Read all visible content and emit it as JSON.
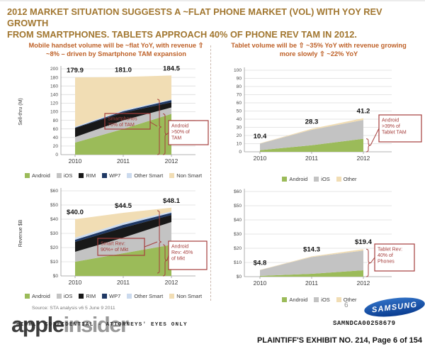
{
  "header": {
    "line1": "2012 MARKET SITUATION SUGGESTS A ~FLAT PHONE MARKET (VOL) WITH YOY REV GROWTH",
    "line2": "FROM SMARTPHONES. TABLETS APPROACH 40% OF PHONE REV TAM IN 2012."
  },
  "colors": {
    "title": "#A1762F",
    "subtitle": "#BE6128",
    "annotation": "#A53E3C",
    "Android": "#9BBB59",
    "iOS": "#C3C3C3",
    "RIM": "#181818",
    "WP7": "#1F3864",
    "Other Smart": "#CBDAEE",
    "Non Smart": "#F1DDB4",
    "Other": "#F1DDB4",
    "samsung_blue": "#0D4BA0"
  },
  "chart_data": [
    {
      "name": "phone_volume",
      "type": "area",
      "title": "Mobile handset volume will be ~flat YoY, with revenue ⇧ ~8% – driven by Smartphone TAM expansion",
      "categories": [
        "2010",
        "2011",
        "2012"
      ],
      "series": [
        {
          "name": "Android",
          "values": [
            28,
            60,
            95
          ]
        },
        {
          "name": "iOS",
          "values": [
            13,
            20,
            15
          ]
        },
        {
          "name": "RIM",
          "values": [
            21,
            18,
            12
          ]
        },
        {
          "name": "WP7",
          "values": [
            1,
            3,
            5
          ]
        },
        {
          "name": "Other Smart",
          "values": [
            2,
            3,
            2
          ]
        },
        {
          "name": "Non Smart",
          "values": [
            114.9,
            77,
            55.5
          ]
        }
      ],
      "totals_labels": [
        "179.9",
        "181.0",
        "184.5"
      ],
      "xlabel": "",
      "ylabel": "Sell-thru (M)",
      "ylim": [
        0,
        200
      ],
      "ytick_step": 20,
      "ytick_prefix": "",
      "grid": true,
      "legend": [
        "Android",
        "iOS",
        "RIM",
        "WP7",
        "Other Smart",
        "Non Smart"
      ],
      "annotations": [
        "Smartphones\n70% of TAM",
        "Android\n>50% of\nTAM"
      ]
    },
    {
      "name": "phone_revenue",
      "type": "area",
      "title": "",
      "categories": [
        "2010",
        "2011",
        "2012"
      ],
      "series": [
        {
          "name": "Android",
          "values": [
            10,
            16,
            22
          ]
        },
        {
          "name": "iOS",
          "values": [
            7,
            11,
            16
          ]
        },
        {
          "name": "RIM",
          "values": [
            7,
            7,
            5
          ]
        },
        {
          "name": "WP7",
          "values": [
            1.5,
            2,
            1.5
          ]
        },
        {
          "name": "Other Smart",
          "values": [
            1.5,
            1.5,
            1
          ]
        },
        {
          "name": "Non Smart",
          "values": [
            13,
            7,
            2.6
          ]
        }
      ],
      "totals_labels": [
        "$40.0",
        "$44.5",
        "$48.1"
      ],
      "xlabel": "",
      "ylabel": "Revenue $B",
      "ylim": [
        0,
        60
      ],
      "ytick_step": 10,
      "ytick_prefix": "$",
      "grid": true,
      "legend": [
        "Android",
        "iOS",
        "RIM",
        "WP7",
        "Other Smart",
        "Non Smart"
      ],
      "annotations": [
        "Smart Rev:\n90%+ of Mkt",
        "Android\nRev: 45%\nof Mkt"
      ]
    },
    {
      "name": "tablet_volume",
      "type": "area",
      "title": "Tablet volume will be ⇧ ~35% YoY with revenue growing more slowly ⇧ ~22% YoY",
      "categories": [
        "2010",
        "2011",
        "2012"
      ],
      "series": [
        {
          "name": "Android",
          "values": [
            2,
            8,
            16
          ]
        },
        {
          "name": "iOS",
          "values": [
            8,
            19,
            23
          ]
        },
        {
          "name": "Other",
          "values": [
            0.4,
            1.3,
            2.2
          ]
        }
      ],
      "totals_labels": [
        "10.4",
        "28.3",
        "41.2"
      ],
      "xlabel": "",
      "ylabel": "",
      "ylim": [
        0,
        100
      ],
      "ytick_step": 10,
      "ytick_prefix": "",
      "grid": true,
      "legend": [
        "Android",
        "iOS",
        "Other"
      ],
      "annotations": [
        "Android\n>39% of\nTablet TAM"
      ]
    },
    {
      "name": "tablet_revenue",
      "type": "area",
      "title": "",
      "categories": [
        "2010",
        "2011",
        "2012"
      ],
      "series": [
        {
          "name": "Android",
          "values": [
            0.5,
            2.0,
            4.5
          ]
        },
        {
          "name": "iOS",
          "values": [
            4.1,
            11.8,
            13.9
          ]
        },
        {
          "name": "Other",
          "values": [
            0.2,
            0.5,
            1.0
          ]
        }
      ],
      "totals_labels": [
        "$4.8",
        "$14.3",
        "$19.4"
      ],
      "xlabel": "",
      "ylabel": "",
      "ylim": [
        0,
        60
      ],
      "ytick_step": 10,
      "ytick_prefix": "$",
      "grid": true,
      "legend": [
        "Android",
        "iOS",
        "Other"
      ],
      "annotations": [
        "Tablet Rev:\n40% of\nPhones"
      ]
    }
  ],
  "footer": {
    "source": "Source: STA analysis v6 5 June 9 2011",
    "confidential": "HIGHLY CONFIDENTIAL - ATTORNEYS' EYES ONLY",
    "page_number": "6",
    "samsung_logo": "SAMSUNG",
    "bates_number": "SAMNDCA00258679",
    "exhibit_label": "PLAINTIFF'S EXHIBIT NO. 214, Page 6 of 154",
    "watermark_apple": "apple",
    "watermark_insider": "insider"
  }
}
